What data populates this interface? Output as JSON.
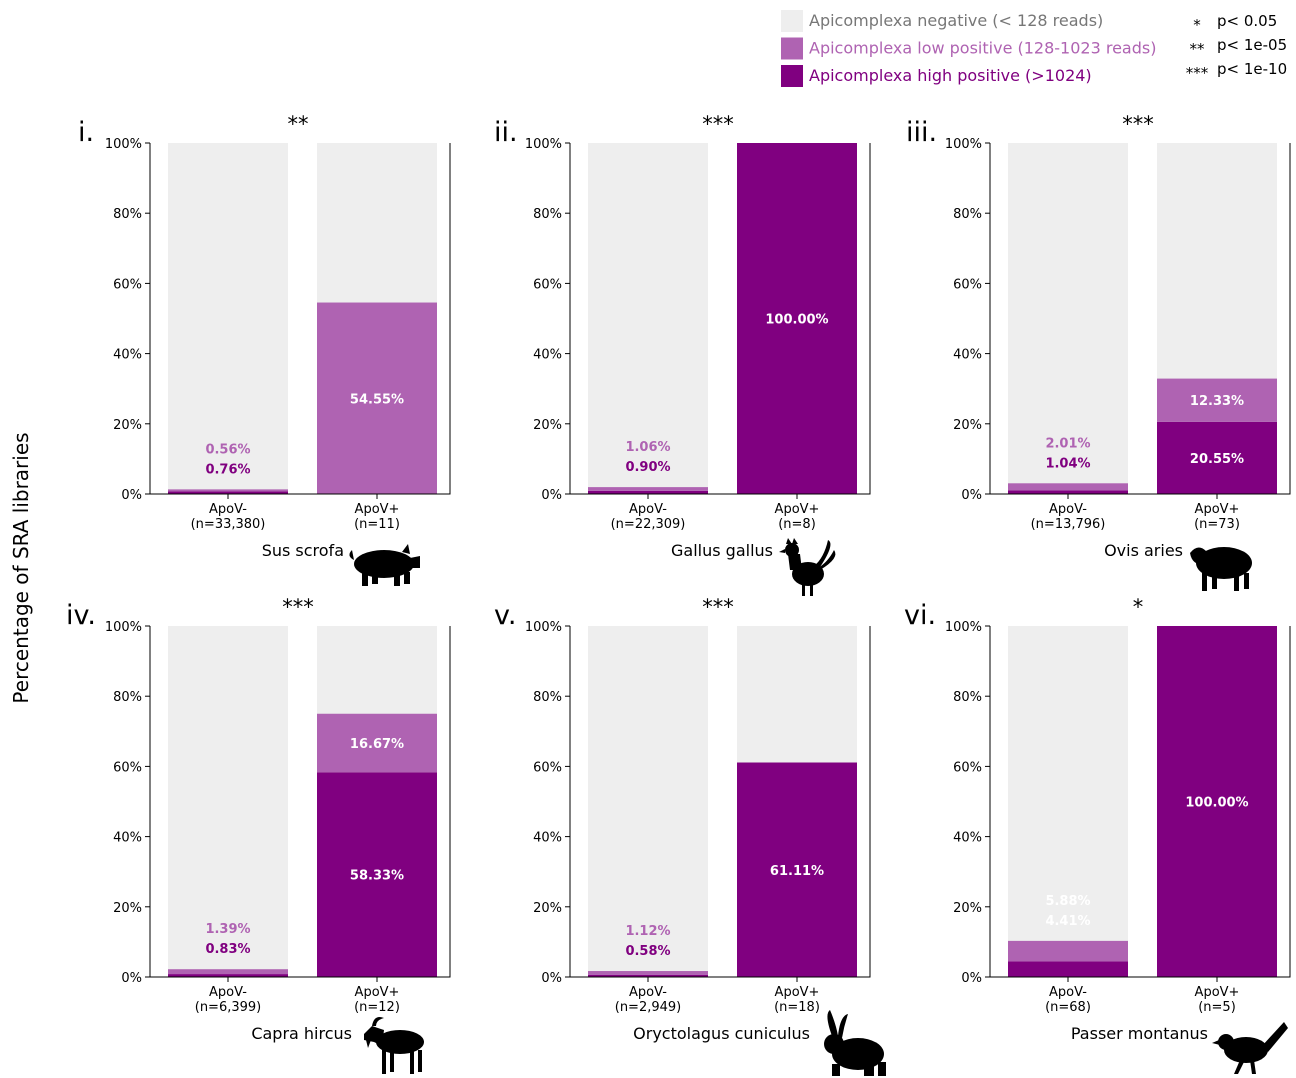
{
  "y_axis_label": "Percentage of SRA libraries",
  "colors": {
    "negative": "#eeeeee",
    "low": "#af63b2",
    "high": "#800080",
    "negative_text": "#777777"
  },
  "legend": [
    {
      "key": "negative",
      "label": "Apicomplexa negative (< 128 reads)"
    },
    {
      "key": "low",
      "label": "Apicomplexa low positive (128-1023 reads)"
    },
    {
      "key": "high",
      "label": "Apicomplexa high positive (>1024)"
    }
  ],
  "pvalue_legend": [
    {
      "stars": "*",
      "label": "p< 0.05"
    },
    {
      "stars": "**",
      "label": "p< 1e-05"
    },
    {
      "stars": "***",
      "label": "p< 1e-10"
    }
  ],
  "chart_data": [
    {
      "type": "bar",
      "stacked": true,
      "panel": "i.",
      "significance": "**",
      "species": "Sus scrofa",
      "icon": "pig-icon",
      "ylim": [
        0,
        100
      ],
      "yticks": [
        "0%",
        "20%",
        "40%",
        "60%",
        "80%",
        "100%"
      ],
      "categories": [
        {
          "name": "ApoV-",
          "n": "(n=33,380)"
        },
        {
          "name": "ApoV+",
          "n": "(n=11)"
        }
      ],
      "series": [
        {
          "name": "Apicomplexa high positive (>1024)",
          "key": "high",
          "values": [
            0.76,
            0
          ]
        },
        {
          "name": "Apicomplexa low positive (128-1023 reads)",
          "key": "low",
          "values": [
            0.56,
            54.55
          ]
        }
      ],
      "labels": [
        {
          "high": "0.76%",
          "low": "0.56%"
        },
        {
          "high": "",
          "low": "54.55%"
        }
      ]
    },
    {
      "type": "bar",
      "stacked": true,
      "panel": "ii.",
      "significance": "***",
      "species": "Gallus gallus",
      "icon": "rooster-icon",
      "ylim": [
        0,
        100
      ],
      "yticks": [
        "0%",
        "20%",
        "40%",
        "60%",
        "80%",
        "100%"
      ],
      "categories": [
        {
          "name": "ApoV-",
          "n": "(n=22,309)"
        },
        {
          "name": "ApoV+",
          "n": "(n=8)"
        }
      ],
      "series": [
        {
          "name": "Apicomplexa high positive (>1024)",
          "key": "high",
          "values": [
            0.9,
            100
          ]
        },
        {
          "name": "Apicomplexa low positive (128-1023 reads)",
          "key": "low",
          "values": [
            1.06,
            0
          ]
        }
      ],
      "labels": [
        {
          "high": "0.90%",
          "low": "1.06%"
        },
        {
          "high": "100.00%",
          "low": ""
        }
      ]
    },
    {
      "type": "bar",
      "stacked": true,
      "panel": "iii.",
      "significance": "***",
      "species": "Ovis aries",
      "icon": "sheep-icon",
      "ylim": [
        0,
        100
      ],
      "yticks": [
        "0%",
        "20%",
        "40%",
        "60%",
        "80%",
        "100%"
      ],
      "categories": [
        {
          "name": "ApoV-",
          "n": "(n=13,796)"
        },
        {
          "name": "ApoV+",
          "n": "(n=73)"
        }
      ],
      "series": [
        {
          "name": "Apicomplexa high positive (>1024)",
          "key": "high",
          "values": [
            1.04,
            20.55
          ]
        },
        {
          "name": "Apicomplexa low positive (128-1023 reads)",
          "key": "low",
          "values": [
            2.01,
            12.33
          ]
        }
      ],
      "labels": [
        {
          "high": "1.04%",
          "low": "2.01%"
        },
        {
          "high": "20.55%",
          "low": "12.33%"
        }
      ]
    },
    {
      "type": "bar",
      "stacked": true,
      "panel": "iv.",
      "significance": "***",
      "species": "Capra hircus",
      "icon": "goat-icon",
      "ylim": [
        0,
        100
      ],
      "yticks": [
        "0%",
        "20%",
        "40%",
        "60%",
        "80%",
        "100%"
      ],
      "categories": [
        {
          "name": "ApoV-",
          "n": "(n=6,399)"
        },
        {
          "name": "ApoV+",
          "n": "(n=12)"
        }
      ],
      "series": [
        {
          "name": "Apicomplexa high positive (>1024)",
          "key": "high",
          "values": [
            0.83,
            58.33
          ]
        },
        {
          "name": "Apicomplexa low positive (128-1023 reads)",
          "key": "low",
          "values": [
            1.39,
            16.67
          ]
        }
      ],
      "labels": [
        {
          "high": "0.83%",
          "low": "1.39%"
        },
        {
          "high": "58.33%",
          "low": "16.67%"
        }
      ]
    },
    {
      "type": "bar",
      "stacked": true,
      "panel": "v.",
      "significance": "***",
      "species": "Oryctolagus cuniculus",
      "icon": "rabbit-icon",
      "ylim": [
        0,
        100
      ],
      "yticks": [
        "0%",
        "20%",
        "40%",
        "60%",
        "80%",
        "100%"
      ],
      "categories": [
        {
          "name": "ApoV-",
          "n": "(n=2,949)"
        },
        {
          "name": "ApoV+",
          "n": "(n=18)"
        }
      ],
      "series": [
        {
          "name": "Apicomplexa high positive (>1024)",
          "key": "high",
          "values": [
            0.58,
            61.11
          ]
        },
        {
          "name": "Apicomplexa low positive (128-1023 reads)",
          "key": "low",
          "values": [
            1.12,
            0
          ]
        }
      ],
      "labels": [
        {
          "high": "0.58%",
          "low": "1.12%"
        },
        {
          "high": "61.11%",
          "low": ""
        }
      ]
    },
    {
      "type": "bar",
      "stacked": true,
      "panel": "vi.",
      "significance": "*",
      "species": "Passer montanus",
      "icon": "sparrow-icon",
      "ylim": [
        0,
        100
      ],
      "yticks": [
        "0%",
        "20%",
        "40%",
        "60%",
        "80%",
        "100%"
      ],
      "categories": [
        {
          "name": "ApoV-",
          "n": "(n=68)"
        },
        {
          "name": "ApoV+",
          "n": "(n=5)"
        }
      ],
      "series": [
        {
          "name": "Apicomplexa high positive (>1024)",
          "key": "high",
          "values": [
            4.41,
            100
          ]
        },
        {
          "name": "Apicomplexa low positive (128-1023 reads)",
          "key": "low",
          "values": [
            5.88,
            0
          ]
        }
      ],
      "labels": [
        {
          "high": "4.41%",
          "low": "5.88%"
        },
        {
          "high": "100.00%",
          "low": ""
        }
      ]
    }
  ]
}
